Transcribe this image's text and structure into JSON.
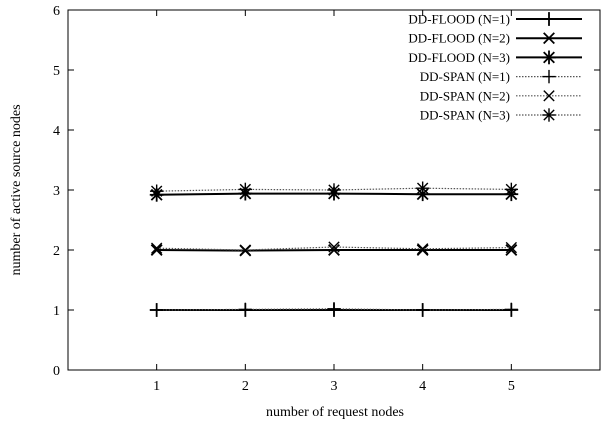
{
  "chart_data": {
    "type": "line",
    "title": "",
    "xlabel": "number of request nodes",
    "ylabel": "number of active source nodes",
    "xlim": [
      0,
      6
    ],
    "ylim": [
      0,
      6
    ],
    "x": [
      1,
      2,
      3,
      4,
      5
    ],
    "xticks": [
      1,
      2,
      3,
      4,
      5
    ],
    "yticks": [
      0,
      1,
      2,
      3,
      4,
      5,
      6
    ],
    "grid": false,
    "legend_position": "top-right",
    "series": [
      {
        "name": "DD-FLOOD (N=1)",
        "marker": "plus",
        "line": "solid",
        "values": [
          1.0,
          1.0,
          1.0,
          1.0,
          1.0
        ]
      },
      {
        "name": "DD-FLOOD (N=2)",
        "marker": "cross",
        "line": "solid",
        "values": [
          2.0,
          1.99,
          2.0,
          2.0,
          2.0
        ]
      },
      {
        "name": "DD-FLOOD (N=3)",
        "marker": "star",
        "line": "solid",
        "values": [
          2.92,
          2.94,
          2.94,
          2.93,
          2.93
        ]
      },
      {
        "name": "DD-SPAN (N=1)",
        "marker": "plus",
        "line": "dotted",
        "values": [
          1.0,
          1.01,
          1.02,
          1.0,
          1.01
        ]
      },
      {
        "name": "DD-SPAN (N=2)",
        "marker": "cross",
        "line": "dotted",
        "values": [
          2.03,
          2.0,
          2.05,
          2.02,
          2.04
        ]
      },
      {
        "name": "DD-SPAN (N=3)",
        "marker": "star",
        "line": "dotted",
        "values": [
          2.98,
          3.01,
          3.0,
          3.03,
          3.01
        ]
      }
    ]
  }
}
